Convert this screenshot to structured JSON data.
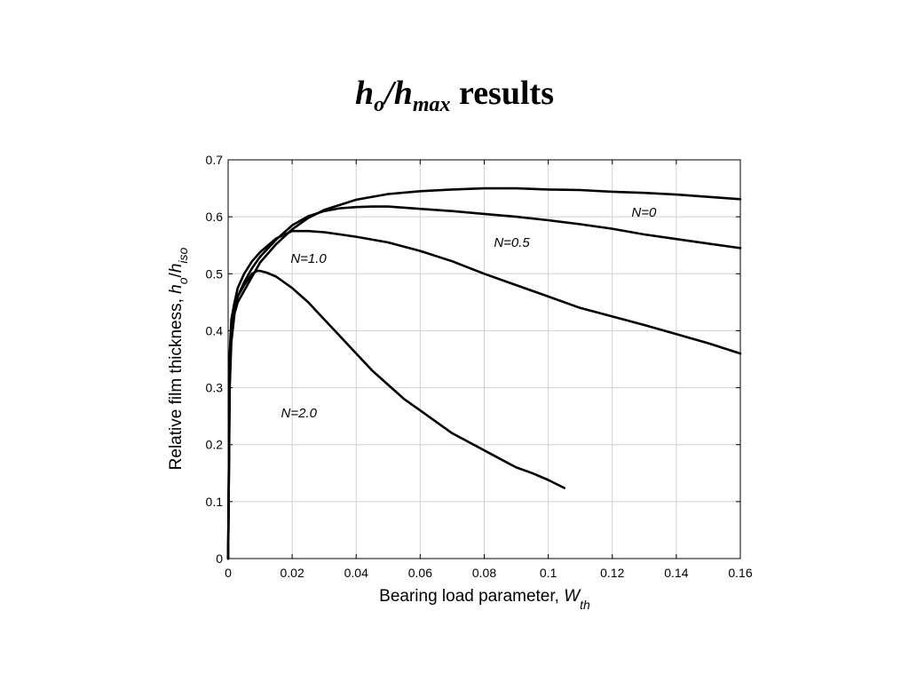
{
  "slide": {
    "title_h": "h",
    "title_o": "o",
    "title_slash": "/",
    "title_h2": "h",
    "title_max": "max",
    "title_rest": " results"
  },
  "chart_data": {
    "type": "line",
    "xlabel": "Bearing load parameter, ",
    "xlabel_symbol": "W",
    "xlabel_sub": "th",
    "ylabel": "Relative film thickness, ",
    "ylabel_symbol": "h",
    "ylabel_sub1": "o",
    "ylabel_slash": "/",
    "ylabel_symbol2": "h",
    "ylabel_sub2": "iso",
    "xlim": [
      0,
      0.16
    ],
    "ylim": [
      0,
      0.7
    ],
    "xticks": [
      0,
      0.02,
      0.04,
      0.06,
      0.08,
      0.1,
      0.12,
      0.14,
      0.16
    ],
    "xtick_labels": [
      "0",
      "0.02",
      "0.04",
      "0.06",
      "0.08",
      "0.1",
      "0.12",
      "0.14",
      "0.16"
    ],
    "yticks": [
      0,
      0.1,
      0.2,
      0.3,
      0.4,
      0.5,
      0.6,
      0.7
    ],
    "ytick_labels": [
      "0",
      "0.1",
      "0.2",
      "0.3",
      "0.4",
      "0.5",
      "0.6",
      "0.7"
    ],
    "grid": true,
    "line_color": "#000000",
    "series": [
      {
        "name": "N=0",
        "x": [
          0,
          0.0005,
          0.001,
          0.002,
          0.003,
          0.005,
          0.0075,
          0.01,
          0.015,
          0.02,
          0.025,
          0.03,
          0.04,
          0.05,
          0.06,
          0.07,
          0.08,
          0.09,
          0.1,
          0.11,
          0.12,
          0.13,
          0.14,
          0.15,
          0.16
        ],
        "y": [
          0,
          0.3,
          0.38,
          0.43,
          0.45,
          0.47,
          0.495,
          0.52,
          0.552,
          0.578,
          0.598,
          0.612,
          0.63,
          0.64,
          0.645,
          0.648,
          0.65,
          0.65,
          0.648,
          0.647,
          0.644,
          0.642,
          0.639,
          0.635,
          0.631
        ]
      },
      {
        "name": "N=0.5",
        "x": [
          0,
          0.0005,
          0.001,
          0.002,
          0.003,
          0.005,
          0.0075,
          0.01,
          0.015,
          0.02,
          0.025,
          0.03,
          0.035,
          0.04,
          0.045,
          0.05,
          0.06,
          0.07,
          0.08,
          0.09,
          0.1,
          0.11,
          0.12,
          0.13,
          0.14,
          0.15,
          0.16
        ],
        "y": [
          0,
          0.33,
          0.41,
          0.44,
          0.46,
          0.485,
          0.51,
          0.53,
          0.56,
          0.585,
          0.601,
          0.61,
          0.615,
          0.617,
          0.618,
          0.618,
          0.614,
          0.61,
          0.605,
          0.6,
          0.594,
          0.587,
          0.579,
          0.569,
          0.561,
          0.553,
          0.545
        ]
      },
      {
        "name": "N=1.0",
        "x": [
          0,
          0.0005,
          0.001,
          0.002,
          0.003,
          0.005,
          0.0075,
          0.01,
          0.015,
          0.02,
          0.025,
          0.03,
          0.04,
          0.05,
          0.06,
          0.07,
          0.08,
          0.09,
          0.1,
          0.11,
          0.12,
          0.13,
          0.14,
          0.15,
          0.16
        ],
        "y": [
          0,
          0.36,
          0.42,
          0.45,
          0.475,
          0.5,
          0.522,
          0.538,
          0.562,
          0.575,
          0.575,
          0.573,
          0.565,
          0.555,
          0.54,
          0.522,
          0.5,
          0.48,
          0.46,
          0.44,
          0.425,
          0.41,
          0.394,
          0.378,
          0.36
        ]
      },
      {
        "name": "N=2.0",
        "x": [
          0,
          0.0005,
          0.001,
          0.002,
          0.003,
          0.005,
          0.0075,
          0.009,
          0.01,
          0.012,
          0.015,
          0.02,
          0.025,
          0.03,
          0.035,
          0.04,
          0.045,
          0.05,
          0.055,
          0.06,
          0.065,
          0.07,
          0.075,
          0.08,
          0.085,
          0.09,
          0.095,
          0.1,
          0.105
        ],
        "y": [
          0,
          0.35,
          0.4,
          0.44,
          0.46,
          0.48,
          0.5,
          0.505,
          0.505,
          0.502,
          0.495,
          0.475,
          0.45,
          0.42,
          0.39,
          0.36,
          0.33,
          0.305,
          0.28,
          0.26,
          0.24,
          0.22,
          0.205,
          0.19,
          0.175,
          0.16,
          0.15,
          0.138,
          0.124
        ]
      }
    ],
    "annotations": [
      {
        "text": "N=0",
        "x": 0.126,
        "y": 0.6
      },
      {
        "text": "N=0.5",
        "x": 0.083,
        "y": 0.547
      },
      {
        "text": "N=1.0",
        "x": 0.0195,
        "y": 0.519
      },
      {
        "text": "N=2.0",
        "x": 0.0165,
        "y": 0.248
      }
    ]
  }
}
